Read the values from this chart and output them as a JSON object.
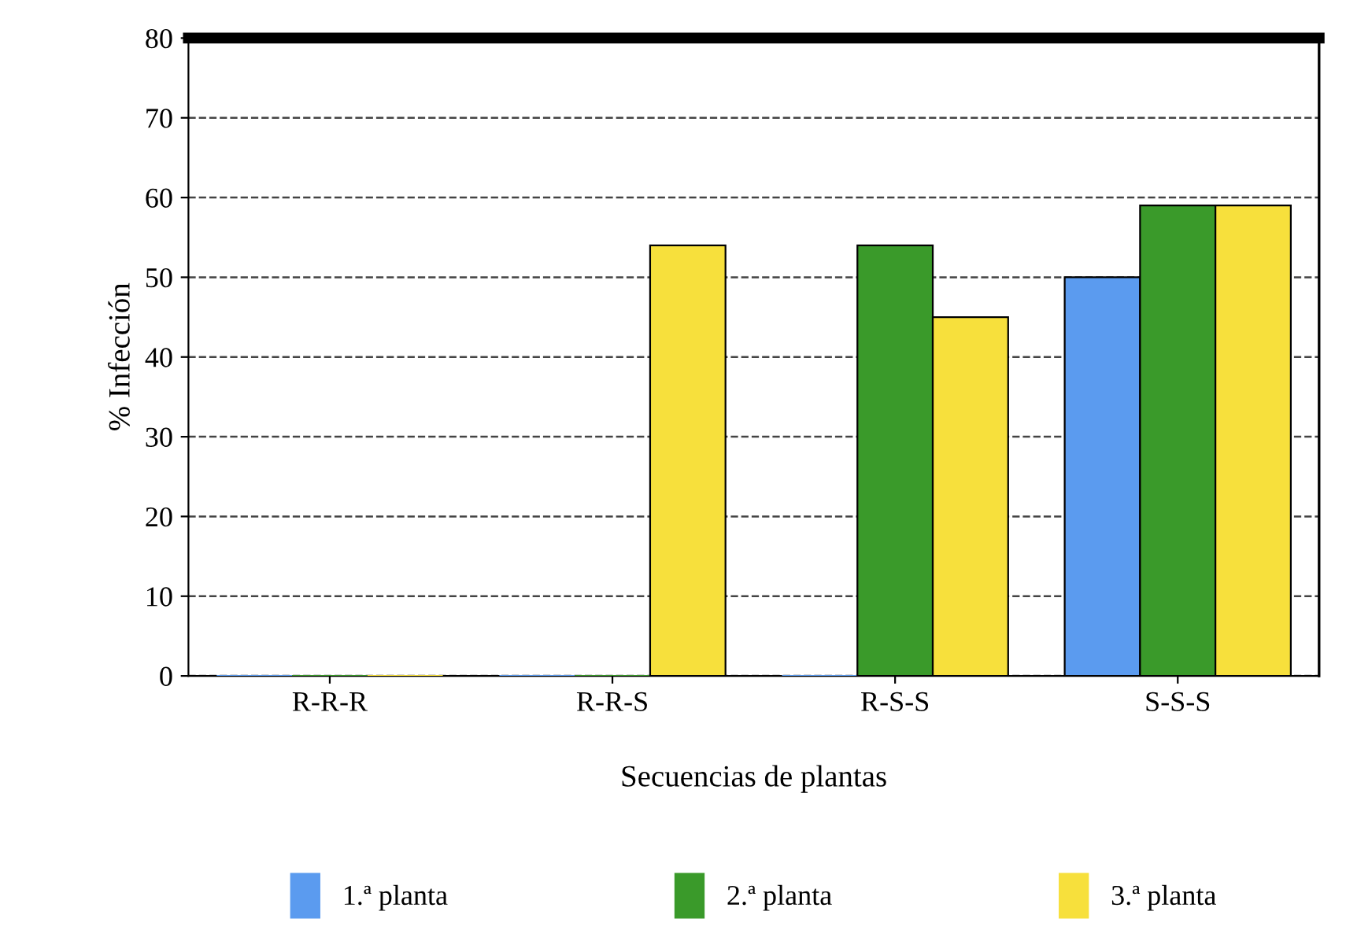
{
  "chart_data": {
    "type": "bar",
    "xlabel": "Secuencias de plantas",
    "ylabel": "% Infección",
    "categories": [
      "R-R-R",
      "R-R-S",
      "R-S-S",
      "S-S-S"
    ],
    "series": [
      {
        "name": "1.ª planta",
        "color": "#5b9bef",
        "values": [
          0,
          0,
          0,
          50
        ]
      },
      {
        "name": "2.ª planta",
        "color": "#3a9a2a",
        "values": [
          0,
          0,
          54,
          59
        ]
      },
      {
        "name": "3.ª planta",
        "color": "#f7e03c",
        "values": [
          0,
          54,
          45,
          59
        ]
      }
    ],
    "ylim": [
      0,
      80
    ],
    "yticks": [
      0,
      10,
      20,
      30,
      40,
      50,
      60,
      70,
      80
    ],
    "grid": "y",
    "legend": "bottom"
  }
}
